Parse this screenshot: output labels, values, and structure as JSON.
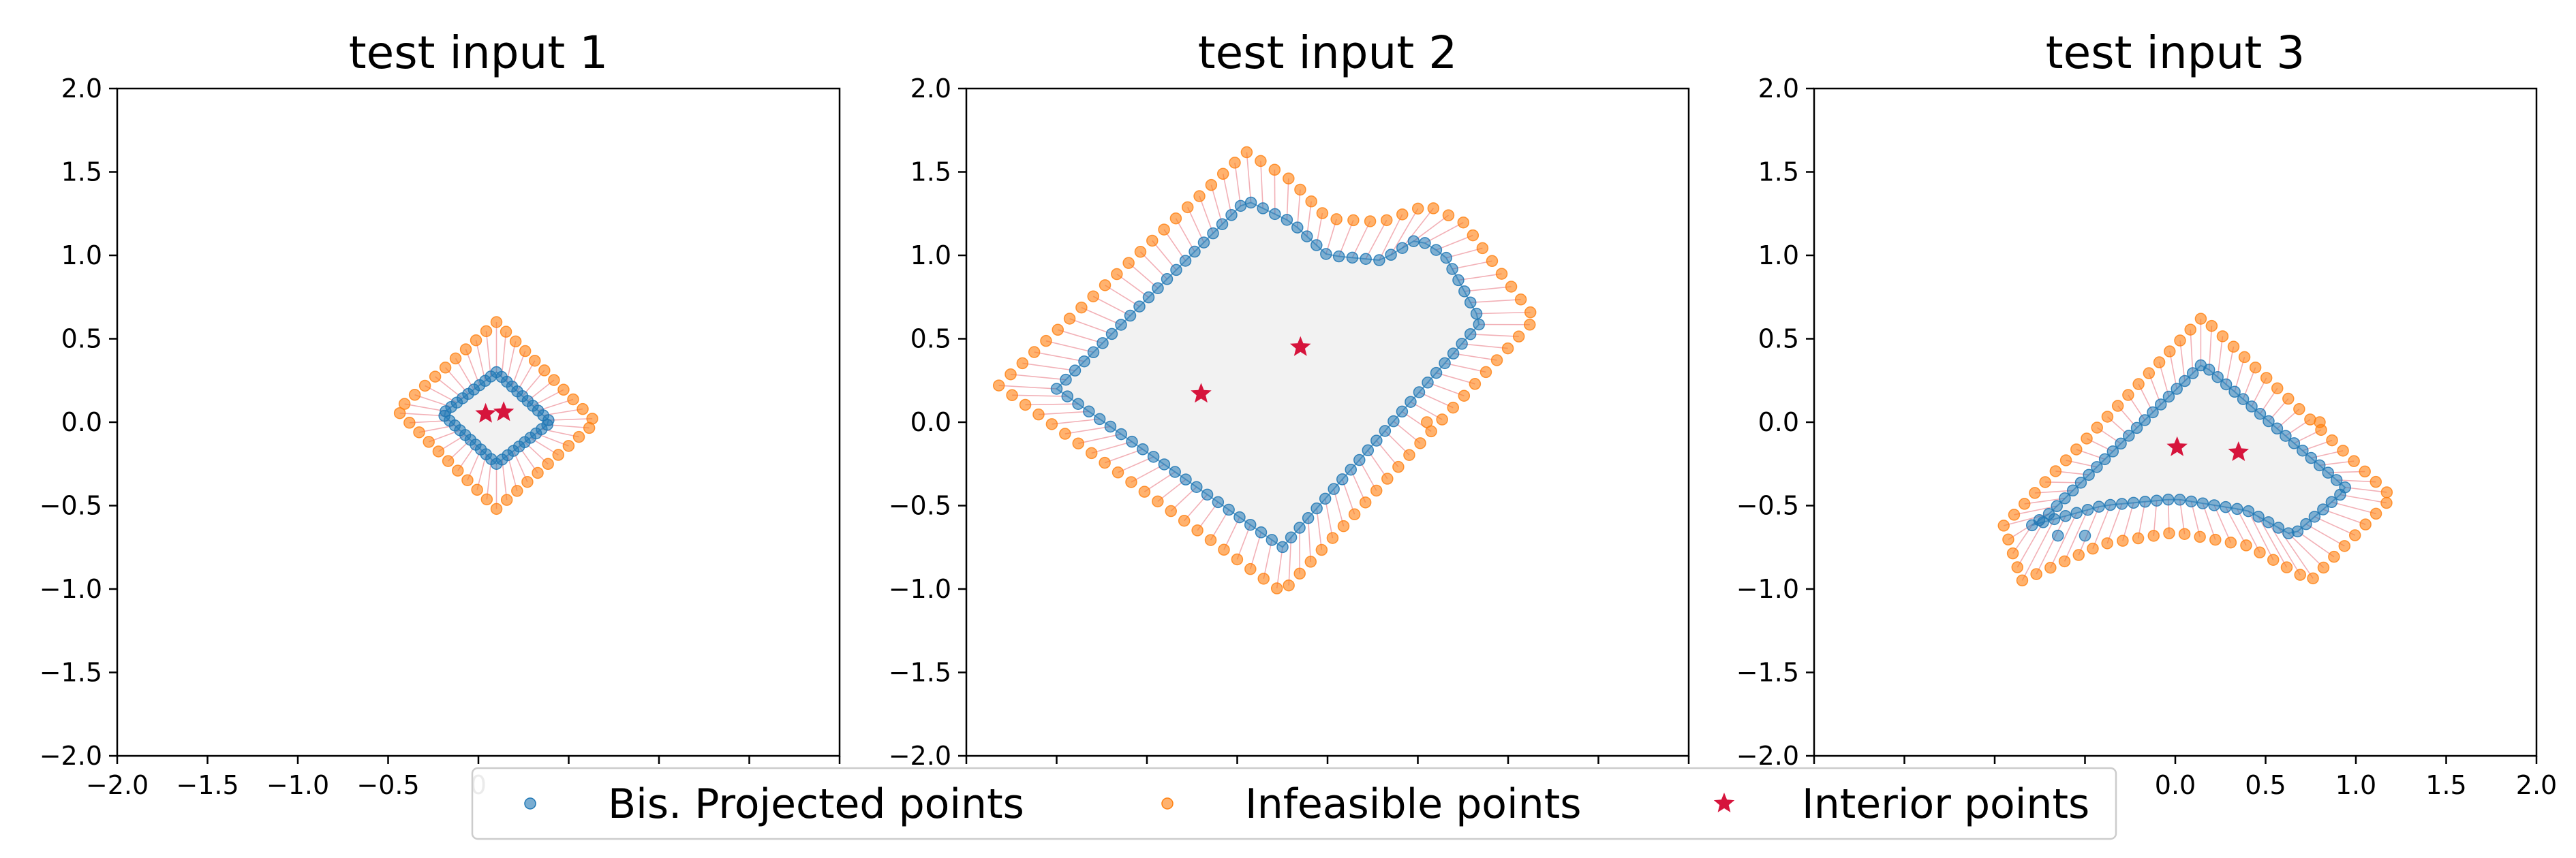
{
  "figure": {
    "legend_position": "bottom-center"
  },
  "colors": {
    "projected": "#1f77b4",
    "infeasible": "#ff7f0e",
    "interior": "#d6143c",
    "connector": "#e8707a",
    "region_fill": "#f2f2f2"
  },
  "legend": {
    "items": [
      {
        "label": "Bis. Projected points",
        "marker": "circle",
        "color": "#1f77b4"
      },
      {
        "label": "Infeasible points",
        "marker": "circle",
        "color": "#ff7f0e"
      },
      {
        "label": "Interior points",
        "marker": "star",
        "color": "#d6143c"
      }
    ]
  },
  "chart_data": [
    {
      "type": "scatter",
      "title": "test input 1",
      "xlim": [
        -2.0,
        2.0
      ],
      "ylim": [
        -2.0,
        2.0
      ],
      "xticks": [
        "−2.0",
        "−1.5",
        "−1.0",
        "−0.5",
        "0",
        "",
        "",
        "",
        ""
      ],
      "yticks": [
        "−2.0",
        "−1.5",
        "−1.0",
        "−0.5",
        "0.0",
        "0.5",
        "1.0",
        "1.5",
        "2.0"
      ],
      "grid": false,
      "region": [
        [
          0.1,
          0.3
        ],
        [
          0.4,
          0.0
        ],
        [
          0.1,
          -0.25
        ],
        [
          -0.2,
          0.05
        ]
      ],
      "infeasible_polygon": [
        [
          0.1,
          0.6
        ],
        [
          0.65,
          0.0
        ],
        [
          0.1,
          -0.52
        ],
        [
          -0.45,
          0.07
        ]
      ],
      "projected_polygon": [
        [
          0.1,
          0.3
        ],
        [
          0.4,
          0.0
        ],
        [
          0.1,
          -0.25
        ],
        [
          -0.2,
          0.05
        ]
      ],
      "point_count": 40,
      "interior_points": [
        [
          0.04,
          0.05
        ],
        [
          0.14,
          0.06
        ]
      ],
      "extra_projected": [],
      "extra_infeasible": []
    },
    {
      "type": "scatter",
      "title": "test input 2",
      "xlim": [
        -2.0,
        2.0
      ],
      "ylim": [
        -2.0,
        2.0
      ],
      "xticks": [
        "",
        "",
        "",
        "",
        "",
        "",
        "",
        "",
        ""
      ],
      "yticks": [
        "−2.0",
        "−1.5",
        "−1.0",
        "−0.5",
        "0.0",
        "0.5",
        "1.0",
        "1.5",
        "2.0"
      ],
      "grid": false,
      "region": [
        [
          -1.5,
          0.2
        ],
        [
          -0.45,
          1.33
        ],
        [
          -0.2,
          1.2
        ],
        [
          0.0,
          1.0
        ],
        [
          0.3,
          0.97
        ],
        [
          0.5,
          1.1
        ],
        [
          0.65,
          1.0
        ],
        [
          0.85,
          0.6
        ],
        [
          -0.25,
          -0.75
        ]
      ],
      "infeasible_polygon": [
        [
          -1.82,
          0.22
        ],
        [
          -0.45,
          1.62
        ],
        [
          -0.2,
          1.45
        ],
        [
          0.0,
          1.22
        ],
        [
          0.3,
          1.2
        ],
        [
          0.55,
          1.3
        ],
        [
          0.75,
          1.2
        ],
        [
          1.15,
          0.62
        ],
        [
          -0.25,
          -1.02
        ]
      ],
      "projected_polygon": [
        [
          -1.5,
          0.2
        ],
        [
          -0.45,
          1.33
        ],
        [
          -0.2,
          1.2
        ],
        [
          0.0,
          1.0
        ],
        [
          0.3,
          0.97
        ],
        [
          0.5,
          1.1
        ],
        [
          0.65,
          1.0
        ],
        [
          0.85,
          0.6
        ],
        [
          -0.25,
          -0.75
        ]
      ],
      "point_count": 88,
      "interior_points": [
        [
          -0.7,
          0.17
        ],
        [
          -0.15,
          0.45
        ]
      ],
      "extra_projected": [],
      "extra_infeasible": [
        [
          0.55,
          0.0
        ]
      ]
    },
    {
      "type": "scatter",
      "title": "test input 3",
      "xlim": [
        -2.0,
        2.0
      ],
      "ylim": [
        -2.0,
        2.0
      ],
      "xticks": [
        "",
        "",
        "",
        "",
        "0.0",
        "0.5",
        "1.0",
        "1.5",
        "2.0"
      ],
      "yticks": [
        "−2.0",
        "−1.5",
        "−1.0",
        "−0.5",
        "0.0",
        "0.5",
        "1.0",
        "1.5",
        "2.0"
      ],
      "grid": false,
      "region": [
        [
          -0.7,
          -0.55
        ],
        [
          0.15,
          0.35
        ],
        [
          0.95,
          -0.4
        ],
        [
          0.65,
          -0.68
        ],
        [
          0.4,
          -0.53
        ],
        [
          0.0,
          -0.46
        ],
        [
          -0.4,
          -0.5
        ],
        [
          -0.8,
          -0.62
        ]
      ],
      "infeasible_polygon": [
        [
          -0.95,
          -0.62
        ],
        [
          0.15,
          0.63
        ],
        [
          1.2,
          -0.45
        ],
        [
          0.75,
          -0.95
        ],
        [
          0.4,
          -0.74
        ],
        [
          0.0,
          -0.66
        ],
        [
          -0.4,
          -0.73
        ],
        [
          -0.85,
          -0.95
        ]
      ],
      "projected_polygon": [
        [
          -0.7,
          -0.55
        ],
        [
          0.15,
          0.35
        ],
        [
          0.95,
          -0.4
        ],
        [
          0.65,
          -0.68
        ],
        [
          0.4,
          -0.53
        ],
        [
          0.0,
          -0.46
        ],
        [
          -0.4,
          -0.5
        ],
        [
          -0.8,
          -0.62
        ]
      ],
      "point_count": 68,
      "interior_points": [
        [
          0.01,
          -0.15
        ],
        [
          0.35,
          -0.18
        ]
      ],
      "extra_projected": [
        [
          -0.65,
          -0.68
        ],
        [
          -0.5,
          -0.68
        ]
      ],
      "extra_infeasible": [
        [
          0.8,
          0.0
        ]
      ]
    }
  ]
}
